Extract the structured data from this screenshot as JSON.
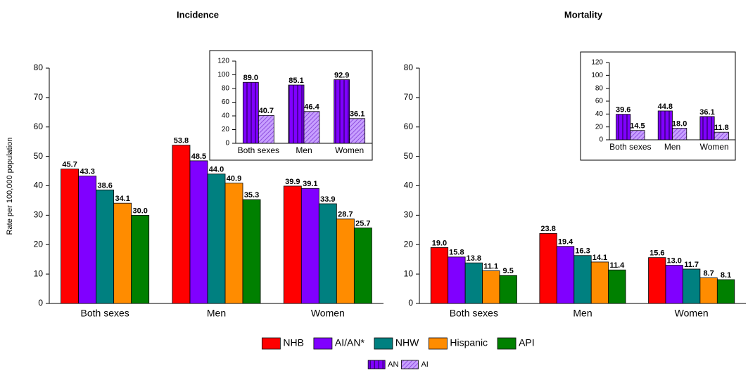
{
  "chart_data": [
    {
      "type": "bar",
      "title": "Incidence",
      "y_label": "Rate per 100,000 population",
      "categories": [
        "Both sexes",
        "Men",
        "Women"
      ],
      "ylim": [
        0,
        80
      ],
      "yticks": [
        0,
        10,
        20,
        30,
        40,
        50,
        60,
        70,
        80
      ],
      "legend": "bottom",
      "series": [
        {
          "name": "NHB",
          "color": "#ff0000",
          "values": [
            45.7,
            53.8,
            39.9
          ],
          "value_labels": [
            "45.7",
            "53.8",
            "39.9"
          ]
        },
        {
          "name": "AI/AN*",
          "color": "#8000ff",
          "values": [
            43.3,
            48.5,
            39.1
          ],
          "value_labels": [
            "43.3",
            "48.5",
            "39.1"
          ]
        },
        {
          "name": "NHW",
          "color": "#008080",
          "values": [
            38.6,
            44.0,
            33.9
          ],
          "value_labels": [
            "38.6",
            "44.0",
            "33.9"
          ]
        },
        {
          "name": "Hispanic",
          "color": "#ff8c00",
          "values": [
            34.1,
            40.9,
            28.7
          ],
          "value_labels": [
            "34.1",
            "40.9",
            "28.7"
          ]
        },
        {
          "name": "API",
          "color": "#008000",
          "values": [
            30.0,
            35.3,
            25.7
          ],
          "value_labels": [
            "30.0",
            "35.3",
            "25.7"
          ]
        }
      ]
    },
    {
      "type": "bar",
      "title": "Mortality",
      "categories": [
        "Both sexes",
        "Men",
        "Women"
      ],
      "ylim": [
        0,
        80
      ],
      "yticks": [
        0,
        10,
        20,
        30,
        40,
        50,
        60,
        70,
        80
      ],
      "series": [
        {
          "name": "NHB",
          "color": "#ff0000",
          "values": [
            19.0,
            23.8,
            15.6
          ],
          "value_labels": [
            "19.0",
            "23.8",
            "15.6"
          ]
        },
        {
          "name": "AI/AN*",
          "color": "#8000ff",
          "values": [
            15.8,
            19.4,
            13.0
          ],
          "value_labels": [
            "15.8",
            "19.4",
            "13.0"
          ]
        },
        {
          "name": "NHW",
          "color": "#008080",
          "values": [
            13.8,
            16.3,
            11.7
          ],
          "value_labels": [
            "13.8",
            "16.3",
            "11.7"
          ]
        },
        {
          "name": "Hispanic",
          "color": "#ff8c00",
          "values": [
            11.1,
            14.1,
            8.7
          ],
          "value_labels": [
            "11.1",
            "14.1",
            "8.7"
          ]
        },
        {
          "name": "API",
          "color": "#008000",
          "values": [
            9.5,
            11.4,
            8.1
          ],
          "value_labels": [
            "9.5",
            "11.4",
            "8.1"
          ]
        }
      ]
    },
    {
      "type": "bar",
      "categories": [
        "Both sexes",
        "Men",
        "Women"
      ],
      "ylim": [
        0,
        120
      ],
      "yticks": [
        0,
        20,
        40,
        60,
        80,
        100,
        120
      ],
      "legend": "bottom",
      "series": [
        {
          "name": "AN",
          "color": "#8000ff",
          "pattern": "vertical",
          "values": [
            89.0,
            85.1,
            92.9
          ],
          "value_labels": [
            "89.0",
            "85.1",
            "92.9"
          ]
        },
        {
          "name": "AI",
          "color": "#c8a0ff",
          "pattern": "diagonal",
          "values": [
            40.7,
            46.4,
            36.1
          ],
          "value_labels": [
            "40.7",
            "46.4",
            "36.1"
          ]
        }
      ]
    },
    {
      "type": "bar",
      "categories": [
        "Both sexes",
        "Men",
        "Women"
      ],
      "ylim": [
        0,
        120
      ],
      "yticks": [
        0,
        20,
        40,
        60,
        80,
        100,
        120
      ],
      "series": [
        {
          "name": "AN",
          "color": "#8000ff",
          "pattern": "vertical",
          "values": [
            39.6,
            44.8,
            36.1
          ],
          "value_labels": [
            "39.6",
            "44.8",
            "36.1"
          ]
        },
        {
          "name": "AI",
          "color": "#c8a0ff",
          "pattern": "diagonal",
          "values": [
            14.5,
            18.0,
            11.8
          ],
          "value_labels": [
            "14.5",
            "18.0",
            "11.8"
          ]
        }
      ]
    }
  ]
}
